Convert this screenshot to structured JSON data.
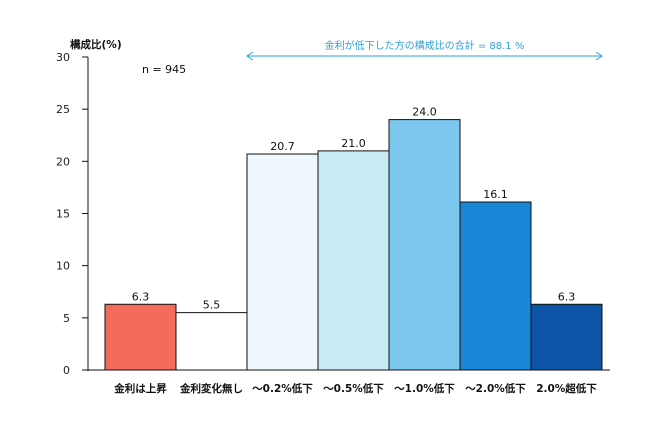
{
  "chart_data": {
    "type": "bar",
    "ylabel": "構成比(%)",
    "ylim": [
      0,
      30
    ],
    "yticks": [
      0,
      5,
      10,
      15,
      20,
      25,
      30
    ],
    "categories": [
      "金利は上昇",
      "金利変化無し",
      "～0.2%低下",
      "～0.5%低下",
      "～1.0%低下",
      "～2.0%低下",
      "2.0%超低下"
    ],
    "values": [
      6.3,
      5.5,
      20.7,
      21.0,
      24.0,
      16.1,
      6.3
    ],
    "value_labels": [
      "6.3",
      "5.5",
      "20.7",
      "21.0",
      "24.0",
      "16.1",
      "6.3"
    ],
    "bar_colors": [
      "#f26b5b",
      "#ffffff",
      "#eef8fc",
      "#c9ebf8",
      "#7cc7ee",
      "#1a86d6",
      "#0d54a6"
    ],
    "sample_note": "n = 945",
    "annotation": {
      "text": "金利が低下した方の構成比の合計 = 88.1 %",
      "color": "#2ea3d8",
      "from_category": 2,
      "to_category": 6
    },
    "grid": false
  }
}
